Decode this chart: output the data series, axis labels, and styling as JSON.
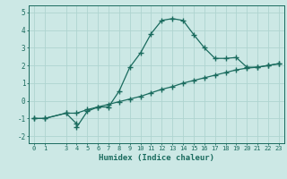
{
  "title": "",
  "xlabel": "Humidex (Indice chaleur)",
  "background_color": "#cce8e5",
  "grid_color": "#afd4d0",
  "line_color": "#1a6b5e",
  "curve1_x": [
    0,
    1,
    3,
    4,
    4,
    5,
    6,
    7,
    8,
    9,
    10,
    11,
    12,
    13,
    14,
    15,
    16,
    17,
    18,
    19,
    20,
    21,
    22,
    23
  ],
  "curve1_y": [
    -1.0,
    -1.0,
    -0.7,
    -1.3,
    -1.5,
    -0.6,
    -0.35,
    -0.35,
    0.55,
    1.9,
    2.7,
    3.8,
    4.55,
    4.65,
    4.55,
    3.75,
    3.0,
    2.4,
    2.4,
    2.45,
    1.9,
    1.9,
    2.0,
    2.1
  ],
  "curve2_x": [
    0,
    1,
    3,
    4,
    5,
    6,
    7,
    8,
    9,
    10,
    11,
    12,
    13,
    14,
    15,
    16,
    17,
    18,
    19,
    20,
    21,
    22,
    23
  ],
  "curve2_y": [
    -1.0,
    -1.0,
    -0.7,
    -0.7,
    -0.5,
    -0.35,
    -0.2,
    -0.05,
    0.1,
    0.25,
    0.45,
    0.65,
    0.8,
    1.0,
    1.15,
    1.3,
    1.45,
    1.6,
    1.75,
    1.85,
    1.9,
    2.0,
    2.1
  ],
  "xlim": [
    -0.5,
    23.5
  ],
  "ylim": [
    -2.4,
    5.4
  ],
  "yticks": [
    -2,
    -1,
    0,
    1,
    2,
    3,
    4,
    5
  ],
  "xticks": [
    0,
    1,
    3,
    4,
    5,
    6,
    7,
    8,
    9,
    10,
    11,
    12,
    13,
    14,
    15,
    16,
    17,
    18,
    19,
    20,
    21,
    22,
    23
  ],
  "xtick_labels": [
    "0",
    "1",
    "3",
    "4",
    "5",
    "6",
    "7",
    "8",
    "9",
    "10",
    "11",
    "12",
    "13",
    "14",
    "15",
    "16",
    "17",
    "18",
    "19",
    "20",
    "21",
    "22",
    "23"
  ]
}
